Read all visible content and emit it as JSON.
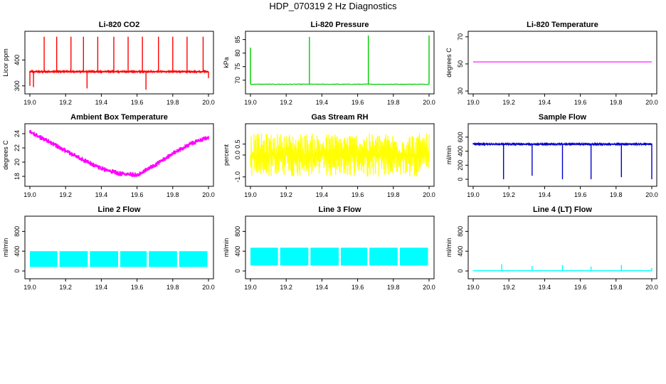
{
  "page": {
    "title": "HDP_070319  2 Hz Diagnostics"
  },
  "chart_data": [
    {
      "type": "line",
      "title": "Li-820 CO2",
      "ylabel": "Licor ppm",
      "xlim": [
        19.0,
        20.0
      ],
      "ylim": [
        280,
        500
      ],
      "xticks": [
        "19.0",
        "19.2",
        "19.4",
        "19.6",
        "19.8",
        "20.0"
      ],
      "yticks": [
        "300",
        "400"
      ],
      "color": "#ff0000",
      "series": [
        {
          "baseline": 355,
          "noise": 3,
          "spikes": [
            [
              19.0,
              300
            ],
            [
              19.02,
              295
            ],
            [
              19.08,
              490
            ],
            [
              19.15,
              490
            ],
            [
              19.23,
              490
            ],
            [
              19.3,
              490
            ],
            [
              19.32,
              290
            ],
            [
              19.38,
              490
            ],
            [
              19.47,
              490
            ],
            [
              19.55,
              490
            ],
            [
              19.63,
              490
            ],
            [
              19.65,
              285
            ],
            [
              19.72,
              490
            ],
            [
              19.8,
              490
            ],
            [
              19.88,
              490
            ],
            [
              19.97,
              490
            ],
            [
              20.0,
              330
            ]
          ]
        }
      ]
    },
    {
      "type": "line",
      "title": "Li-820 Pressure",
      "ylabel": "kPa",
      "xlim": [
        19.0,
        20.0
      ],
      "ylim": [
        66,
        87
      ],
      "xticks": [
        "19.0",
        "19.2",
        "19.4",
        "19.6",
        "19.8",
        "20.0"
      ],
      "yticks": [
        "70",
        "75",
        "80",
        "85"
      ],
      "color": "#00cc00",
      "series": [
        {
          "baseline": 68.5,
          "noise": 0.1,
          "spikes": [
            [
              19.0,
              82
            ],
            [
              19.33,
              86
            ],
            [
              19.66,
              86.5
            ],
            [
              20.0,
              86.5
            ]
          ]
        }
      ]
    },
    {
      "type": "line",
      "title": "Li-820 Temperature",
      "ylabel": "degrees C",
      "xlim": [
        19.0,
        20.0
      ],
      "ylim": [
        30,
        72
      ],
      "xticks": [
        "19.0",
        "19.2",
        "19.4",
        "19.6",
        "19.8",
        "20.0"
      ],
      "yticks": [
        "30",
        "50",
        "70"
      ],
      "color": "#ff00ff",
      "series": [
        {
          "baseline": 51.5,
          "noise": 0,
          "spikes": []
        }
      ]
    },
    {
      "type": "line",
      "title": "Ambient Box Temperature",
      "ylabel": "degrees C",
      "xlim": [
        19.0,
        20.0
      ],
      "ylim": [
        17,
        25
      ],
      "xticks": [
        "19.0",
        "19.2",
        "19.4",
        "19.6",
        "19.8",
        "20.0"
      ],
      "yticks": [
        "18",
        "20",
        "22",
        "24"
      ],
      "color": "#ff00ff",
      "series": [
        {
          "noise": 0.35,
          "curve": [
            [
              19.0,
              24.2
            ],
            [
              19.1,
              23.0
            ],
            [
              19.2,
              21.6
            ],
            [
              19.3,
              20.3
            ],
            [
              19.4,
              19.1
            ],
            [
              19.5,
              18.4
            ],
            [
              19.6,
              18.2
            ],
            [
              19.7,
              19.6
            ],
            [
              19.8,
              21.2
            ],
            [
              19.9,
              22.6
            ],
            [
              20.0,
              23.5
            ]
          ]
        }
      ]
    },
    {
      "type": "line",
      "title": "Gas Stream RH",
      "ylabel": "percent",
      "xlim": [
        19.0,
        20.0
      ],
      "ylim": [
        -1.3,
        1.3
      ],
      "xticks": [
        "19.0",
        "19.2",
        "19.4",
        "19.6",
        "19.8",
        "20.0"
      ],
      "yticks": [
        "-1.0",
        "0.0",
        "0.5"
      ],
      "color": "#ffff00",
      "series": [
        {
          "baseline": 0.0,
          "noise": 1.0
        }
      ]
    },
    {
      "type": "line",
      "title": "Sample Flow",
      "ylabel": "ml/min",
      "xlim": [
        19.0,
        20.0
      ],
      "ylim": [
        -60,
        750
      ],
      "xticks": [
        "19.0",
        "19.2",
        "19.4",
        "19.6",
        "19.8",
        "20.0"
      ],
      "yticks": [
        "0",
        "200",
        "400",
        "600"
      ],
      "color": "#0000cc",
      "series": [
        {
          "baseline": 500,
          "noise": 10,
          "spikes": [
            [
              19.17,
              0
            ],
            [
              19.33,
              50
            ],
            [
              19.5,
              0
            ],
            [
              19.66,
              0
            ],
            [
              19.83,
              30
            ],
            [
              20.0,
              0
            ]
          ]
        }
      ]
    },
    {
      "type": "line",
      "title": "Line 2 Flow",
      "ylabel": "ml/min",
      "xlim": [
        19.0,
        20.0
      ],
      "ylim": [
        -100,
        1050
      ],
      "xticks": [
        "19.0",
        "19.2",
        "19.4",
        "19.6",
        "19.8",
        "20.0"
      ],
      "yticks": [
        "0",
        "400",
        "800"
      ],
      "color": "#00ffff",
      "series": [
        {
          "band": [
            80,
            400
          ],
          "gaps": [
            19.16,
            19.33,
            19.5,
            19.66,
            19.83
          ]
        }
      ]
    },
    {
      "type": "line",
      "title": "Line 3 Flow",
      "ylabel": "ml/min",
      "xlim": [
        19.0,
        20.0
      ],
      "ylim": [
        -100,
        1050
      ],
      "xticks": [
        "19.0",
        "19.2",
        "19.4",
        "19.6",
        "19.8",
        "20.0"
      ],
      "yticks": [
        "0",
        "400",
        "800"
      ],
      "color": "#00ffff",
      "series": [
        {
          "band": [
            110,
            470
          ],
          "gaps": [
            19.16,
            19.33,
            19.5,
            19.66,
            19.83
          ]
        }
      ]
    },
    {
      "type": "line",
      "title": "Line 4 (LT) Flow",
      "ylabel": "ml/min",
      "xlim": [
        19.0,
        20.0
      ],
      "ylim": [
        -100,
        1050
      ],
      "xticks": [
        "19.0",
        "19.2",
        "19.4",
        "19.6",
        "19.8",
        "20.0"
      ],
      "yticks": [
        "0",
        "400",
        "800"
      ],
      "color": "#00ffff",
      "series": [
        {
          "baseline": 5,
          "noise": 1,
          "spikes": [
            [
              19.16,
              140
            ],
            [
              19.33,
              100
            ],
            [
              19.5,
              120
            ],
            [
              19.66,
              90
            ],
            [
              19.83,
              120
            ],
            [
              20.0,
              60
            ]
          ]
        }
      ]
    }
  ]
}
